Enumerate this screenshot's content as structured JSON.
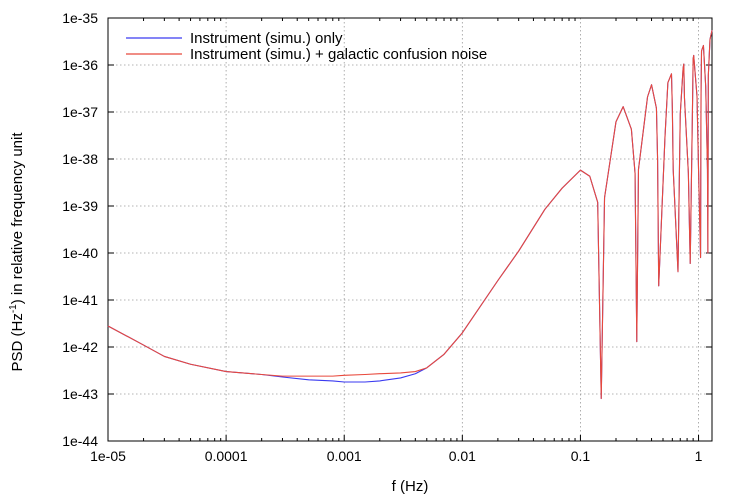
{
  "chart_data": {
    "type": "line",
    "title": "",
    "xlabel": "f (Hz)",
    "ylabel": {
      "prefix": "PSD (Hz",
      "exponent": "-1",
      "suffix": ") in relative frequency unit"
    },
    "xscale": "log",
    "yscale": "log",
    "xlim": [
      1e-05,
      1.3
    ],
    "ylim": [
      1e-44,
      1e-35
    ],
    "grid": true,
    "legend_position": "top-left",
    "x_ticks": [
      {
        "value": 1e-05,
        "label": "1e-05"
      },
      {
        "value": 0.0001,
        "label": "0.0001"
      },
      {
        "value": 0.001,
        "label": "0.001"
      },
      {
        "value": 0.01,
        "label": "0.01"
      },
      {
        "value": 0.1,
        "label": "0.1"
      },
      {
        "value": 1,
        "label": "1"
      }
    ],
    "y_ticks": [
      {
        "value": 1e-44,
        "label": "1e-44"
      },
      {
        "value": 1e-43,
        "label": "1e-43"
      },
      {
        "value": 1e-42,
        "label": "1e-42"
      },
      {
        "value": 1e-41,
        "label": "1e-41"
      },
      {
        "value": 1e-40,
        "label": "1e-40"
      },
      {
        "value": 1e-39,
        "label": "1e-39"
      },
      {
        "value": 1e-38,
        "label": "1e-38"
      },
      {
        "value": 1e-37,
        "label": "1e-37"
      },
      {
        "value": 1e-36,
        "label": "1e-36"
      },
      {
        "value": 1e-35,
        "label": "1e-35"
      }
    ],
    "series": [
      {
        "name": "Instrument (simu.) only",
        "color": "#3a3af0",
        "x": [
          1e-05,
          2e-05,
          3e-05,
          5e-05,
          0.0001,
          0.0002,
          0.0003,
          0.0005,
          0.0008,
          0.001,
          0.0015,
          0.002,
          0.003,
          0.004,
          0.005,
          0.007,
          0.01,
          0.02,
          0.03,
          0.05,
          0.07,
          0.1,
          0.12,
          0.14,
          0.15,
          0.16,
          0.2,
          0.23,
          0.27,
          0.29,
          0.3,
          0.31,
          0.37,
          0.4,
          0.44,
          0.45,
          0.46,
          0.52,
          0.55,
          0.59,
          0.6,
          0.61,
          0.67,
          0.7,
          0.74,
          0.75,
          0.76,
          0.82,
          0.85,
          0.89,
          0.9,
          0.91,
          0.97,
          1.0,
          1.04,
          1.05,
          1.06,
          1.1,
          1.15,
          1.19,
          1.2,
          1.21,
          1.25,
          1.3
        ],
        "y": [
          2.8e-42,
          1.1e-42,
          6.3e-43,
          4.3e-43,
          3e-43,
          2.6e-43,
          2.3e-43,
          2e-43,
          1.9e-43,
          1.8e-43,
          1.8e-43,
          1.9e-43,
          2.2e-43,
          2.7e-43,
          3.6e-43,
          7e-43,
          2e-42,
          2.6e-41,
          1.1e-40,
          8.5e-40,
          2.4e-39,
          5.8e-39,
          4.3e-39,
          1.2e-39,
          8e-44,
          1.5e-39,
          6.2e-38,
          1.3e-37,
          4.3e-38,
          5e-39,
          1.3e-42,
          6e-39,
          2.1e-37,
          3.8e-37,
          1.2e-37,
          1e-38,
          2e-41,
          3e-38,
          4.2e-37,
          6.5e-37,
          1.2e-37,
          6e-39,
          4e-41,
          9e-38,
          8.5e-37,
          1.05e-36,
          2e-37,
          5e-39,
          6e-41,
          1.6e-37,
          1.35e-36,
          1.6e-36,
          2.2e-37,
          6e-39,
          8e-41,
          2.5e-37,
          2e-36,
          2.6e-36,
          3.5e-37,
          6e-39,
          1e-40,
          6e-37,
          3.5e-36,
          5.5e-36
        ]
      },
      {
        "name": "Instrument (simu.) + galactic confusion noise",
        "color": "#e8493c",
        "x": [
          1e-05,
          2e-05,
          3e-05,
          5e-05,
          0.0001,
          0.0002,
          0.0003,
          0.0005,
          0.0008,
          0.001,
          0.0015,
          0.002,
          0.003,
          0.004,
          0.005,
          0.007,
          0.01,
          0.02,
          0.03,
          0.05,
          0.07,
          0.1,
          0.12,
          0.14,
          0.15,
          0.16,
          0.2,
          0.23,
          0.27,
          0.29,
          0.3,
          0.31,
          0.37,
          0.4,
          0.44,
          0.45,
          0.46,
          0.52,
          0.55,
          0.59,
          0.6,
          0.61,
          0.67,
          0.7,
          0.74,
          0.75,
          0.76,
          0.82,
          0.85,
          0.89,
          0.9,
          0.91,
          0.97,
          1.0,
          1.04,
          1.05,
          1.06,
          1.1,
          1.15,
          1.19,
          1.2,
          1.21,
          1.25,
          1.3
        ],
        "y": [
          2.8e-42,
          1.1e-42,
          6.3e-43,
          4.3e-43,
          3e-43,
          2.6e-43,
          2.4e-43,
          2.4e-43,
          2.4e-43,
          2.5e-43,
          2.6e-43,
          2.7e-43,
          2.8e-43,
          3e-43,
          3.6e-43,
          7e-43,
          2e-42,
          2.6e-41,
          1.1e-40,
          8.5e-40,
          2.4e-39,
          5.8e-39,
          4.3e-39,
          1.2e-39,
          8e-44,
          1.5e-39,
          6.2e-38,
          1.3e-37,
          4.3e-38,
          5e-39,
          1.3e-42,
          6e-39,
          2.1e-37,
          3.8e-37,
          1.2e-37,
          1e-38,
          2e-41,
          3e-38,
          4.2e-37,
          6.5e-37,
          1.2e-37,
          6e-39,
          4e-41,
          9e-38,
          8.5e-37,
          1.05e-36,
          2e-37,
          5e-39,
          6e-41,
          1.6e-37,
          1.35e-36,
          1.6e-36,
          2.2e-37,
          6e-39,
          8e-41,
          2.5e-37,
          2e-36,
          2.6e-36,
          3.5e-37,
          6e-39,
          1e-40,
          6e-37,
          3.5e-36,
          5.5e-36
        ]
      }
    ]
  }
}
